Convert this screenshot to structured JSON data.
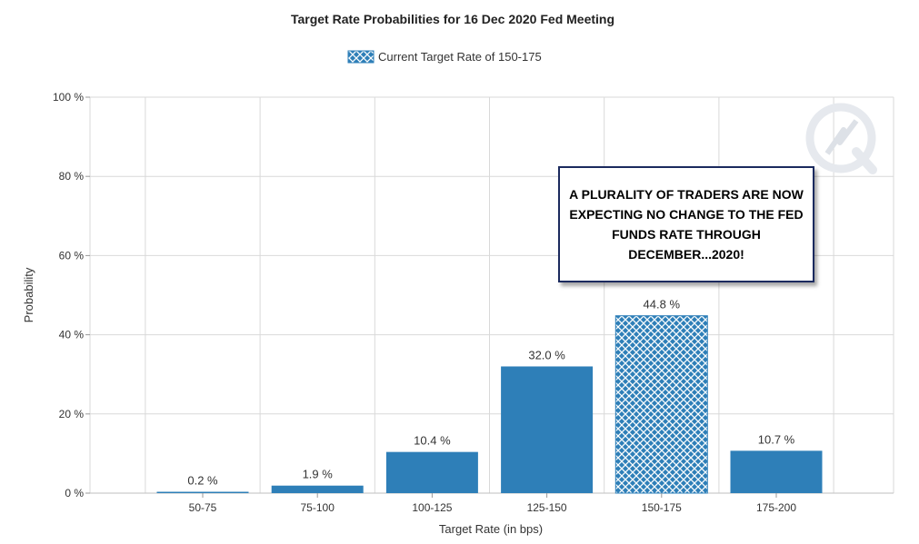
{
  "chart_data": {
    "type": "bar",
    "title": "Target Rate Probabilities for 16 Dec 2020 Fed Meeting",
    "xlabel": "Target Rate (in bps)",
    "ylabel": "Probability",
    "categories": [
      "50-75",
      "75-100",
      "100-125",
      "125-150",
      "150-175",
      "175-200"
    ],
    "values": [
      0.2,
      1.9,
      10.4,
      32.0,
      44.8,
      10.7
    ],
    "value_labels": [
      "0.2 %",
      "1.9 %",
      "10.4 %",
      "32.0 %",
      "44.8 %",
      "10.7 %"
    ],
    "highlight_category": "150-175",
    "ylim": [
      0,
      100
    ],
    "yticks": [
      0,
      20,
      40,
      60,
      80,
      100
    ],
    "ytick_labels": [
      "0 %",
      "20 %",
      "40 %",
      "60 %",
      "80 %",
      "100 %"
    ],
    "grid": true,
    "legend": {
      "placement": "top-center",
      "entries": [
        {
          "label": "Current Target Rate of 150-175",
          "style": "crosshatch"
        }
      ]
    },
    "colors": {
      "bar": "#2e7fb8",
      "highlight": "#2e7fb8",
      "grid": "#d9d9d9"
    }
  },
  "annotation": {
    "text": "A PLURALITY OF TRADERS ARE NOW EXPECTING NO CHANGE TO THE FED FUNDS RATE THROUGH DECEMBER...2020!"
  }
}
